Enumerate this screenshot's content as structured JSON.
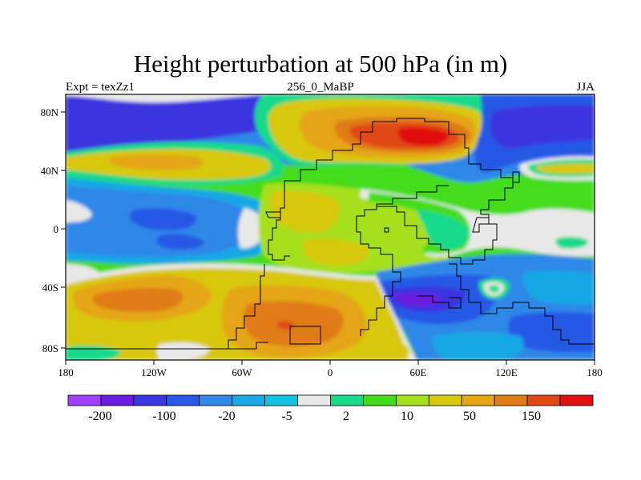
{
  "header": {
    "title": "Height perturbation at 500 hPa (in m)",
    "left": "Expt = texZz1",
    "center": "256_0_MaBP",
    "right": "JJA"
  },
  "map_axes": {
    "x_ticks": [
      "180",
      "120W",
      "60W",
      "0",
      "60E",
      "120E",
      "180"
    ],
    "y_ticks": [
      "80N",
      "40N",
      "0",
      "40S",
      "80S"
    ]
  },
  "colorbar": {
    "colors": [
      "#a040ff",
      "#6a1ce0",
      "#3a36e0",
      "#2858e6",
      "#2f88e8",
      "#18a8e4",
      "#12c4e4",
      "#e8e8e8",
      "#16da8a",
      "#44dc1a",
      "#a6e01c",
      "#d8c80a",
      "#e4a612",
      "#e07c16",
      "#e04a12",
      "#e01010"
    ],
    "labels": [
      "-200",
      "-100",
      "-20",
      "-5",
      "2",
      "10",
      "50",
      "150"
    ]
  }
}
